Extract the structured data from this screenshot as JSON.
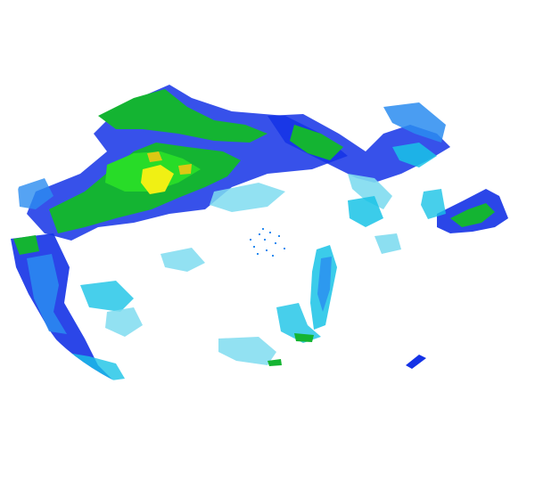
{
  "map": {
    "type": "weather-radar-reflectivity",
    "background": "#ffffff",
    "legend_visible": false,
    "labels_visible": false,
    "palette": {
      "light_cyan": "#7fdcf0",
      "cyan": "#19c3e6",
      "light_blue": "#2a8cf0",
      "blue": "#1432e6",
      "green": "#14b432",
      "bright_green": "#28dc28",
      "yellow": "#f0f014",
      "gold": "#dcc814"
    }
  }
}
